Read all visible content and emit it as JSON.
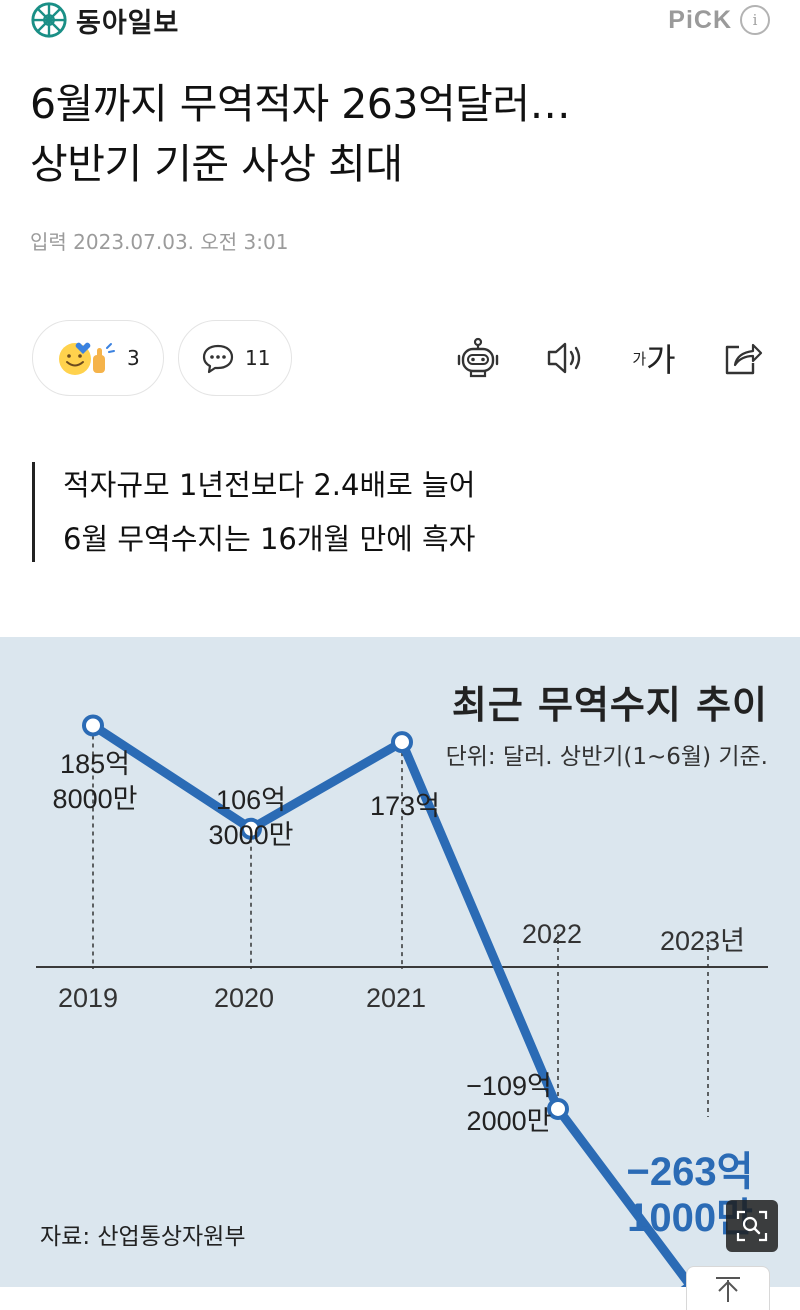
{
  "header": {
    "publisher": "동아일보",
    "pick_label": "PiCK"
  },
  "article": {
    "title_line1": "6월까지 무역적자 263억달러…",
    "title_line2": "상반기 기준 사상 최대",
    "date": "입력 2023.07.03. 오전 3:01",
    "subheadlines": [
      "적자규모 1년전보다 2.4배로 늘어",
      "6월 무역수지는 16개월 만에 흑자"
    ]
  },
  "actions": {
    "reaction_count": "3",
    "comment_count": "11",
    "font_label_small": "가",
    "font_label_big": "가",
    "icons": [
      "reaction-emoji-icon",
      "comment-icon",
      "robot-summary-icon",
      "speaker-icon",
      "font-size-icon",
      "share-icon"
    ]
  },
  "chart_data": {
    "type": "line",
    "title": "최근 무역수지 추이",
    "unit_note": "단위: 달러. 상반기(1~6월) 기준.",
    "source": "자료: 산업통상자원부",
    "categories": [
      "2019",
      "2020",
      "2021",
      "2022",
      "2023년"
    ],
    "values": [
      185.8,
      106.3,
      173,
      -109.2,
      -263.1
    ],
    "value_labels": [
      [
        "185억",
        "8000만"
      ],
      [
        "106억",
        "3000만"
      ],
      [
        "173억",
        ""
      ],
      [
        "−109억",
        "2000만"
      ],
      [
        "−263억",
        "1000만"
      ]
    ],
    "colors": {
      "line": "#2b6bb5",
      "background": "#dbe6ee",
      "highlight": "#2b6bb5"
    },
    "grid": false,
    "legend": "none"
  }
}
